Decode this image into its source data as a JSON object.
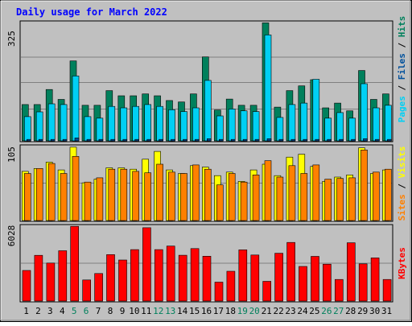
{
  "title": "Daily usage for March 2022",
  "colors": {
    "outer_bg": "#c0c0c0",
    "panel_bg": "#c0c0c0",
    "title": "#0000ff",
    "hits": "#00805c",
    "files": "#00d0f4",
    "pages": "#00509c",
    "visits": "#ffff00",
    "sites": "#ff8000",
    "kbytes": "#ff0000",
    "weekend_day": "#00805c",
    "weekday": "#000000",
    "grid": "#808080"
  },
  "chart_data": [
    {
      "type": "bar",
      "title": "Daily usage for March 2022",
      "categories": [
        "1",
        "2",
        "3",
        "4",
        "5",
        "6",
        "7",
        "8",
        "9",
        "10",
        "11",
        "12",
        "13",
        "14",
        "15",
        "16",
        "17",
        "18",
        "19",
        "20",
        "21",
        "22",
        "23",
        "24",
        "25",
        "26",
        "27",
        "28",
        "29",
        "30",
        "31"
      ],
      "weekend_days": [
        "5",
        "6",
        "12",
        "13",
        "19",
        "20",
        "26",
        "27"
      ],
      "scale_label": "325",
      "ylim": [
        0,
        325
      ],
      "series": [
        {
          "name": "Hits",
          "values": [
            99,
            99,
            140,
            113,
            218,
            97,
            97,
            137,
            123,
            123,
            128,
            123,
            110,
            106,
            128,
            229,
            84,
            114,
            97,
            97,
            322,
            92,
            137,
            150,
            167,
            90,
            103,
            82,
            192,
            113,
            128
          ]
        },
        {
          "name": "Files",
          "values": [
            66,
            79,
            101,
            99,
            177,
            66,
            62,
            94,
            90,
            94,
            99,
            94,
            85,
            80,
            90,
            165,
            68,
            87,
            82,
            80,
            289,
            64,
            99,
            103,
            168,
            62,
            77,
            62,
            156,
            90,
            97
          ]
        },
        {
          "name": "Pages",
          "values": [
            4,
            4,
            4,
            4,
            8,
            4,
            4,
            4,
            4,
            4,
            4,
            4,
            4,
            4,
            4,
            6,
            4,
            4,
            4,
            4,
            6,
            4,
            4,
            4,
            4,
            4,
            4,
            4,
            6,
            4,
            4
          ]
        }
      ],
      "axis_labels": [
        "Pages",
        "Files",
        "Hits"
      ]
    },
    {
      "type": "bar",
      "scale_label": "105",
      "ylim": [
        0,
        105
      ],
      "series": [
        {
          "name": "Visits",
          "values": [
            69,
            73,
            82,
            71,
            103,
            53,
            58,
            74,
            74,
            72,
            86,
            97,
            71,
            66,
            77,
            75,
            63,
            68,
            55,
            71,
            79,
            63,
            89,
            93,
            76,
            55,
            61,
            64,
            102,
            66,
            71
          ]
        },
        {
          "name": "Sites",
          "values": [
            66,
            73,
            80,
            66,
            90,
            54,
            60,
            72,
            72,
            69,
            67,
            79,
            68,
            66,
            78,
            72,
            50,
            66,
            54,
            64,
            84,
            61,
            77,
            66,
            78,
            58,
            59,
            60,
            99,
            68,
            72
          ]
        }
      ],
      "axis_labels": [
        "Sites",
        "Visits"
      ]
    },
    {
      "type": "bar",
      "scale_label": "6028",
      "ylim": [
        0,
        6028
      ],
      "series": [
        {
          "name": "KBytes",
          "values": [
            2440,
            3640,
            3030,
            4010,
            5950,
            1680,
            2190,
            3700,
            3270,
            4100,
            5840,
            4100,
            4380,
            3650,
            4180,
            3570,
            1510,
            2370,
            4080,
            3670,
            1570,
            3810,
            4670,
            2760,
            3560,
            2940,
            1720,
            4640,
            2960,
            3440,
            1720
          ]
        }
      ],
      "axis_labels": [
        "KBytes"
      ]
    }
  ]
}
